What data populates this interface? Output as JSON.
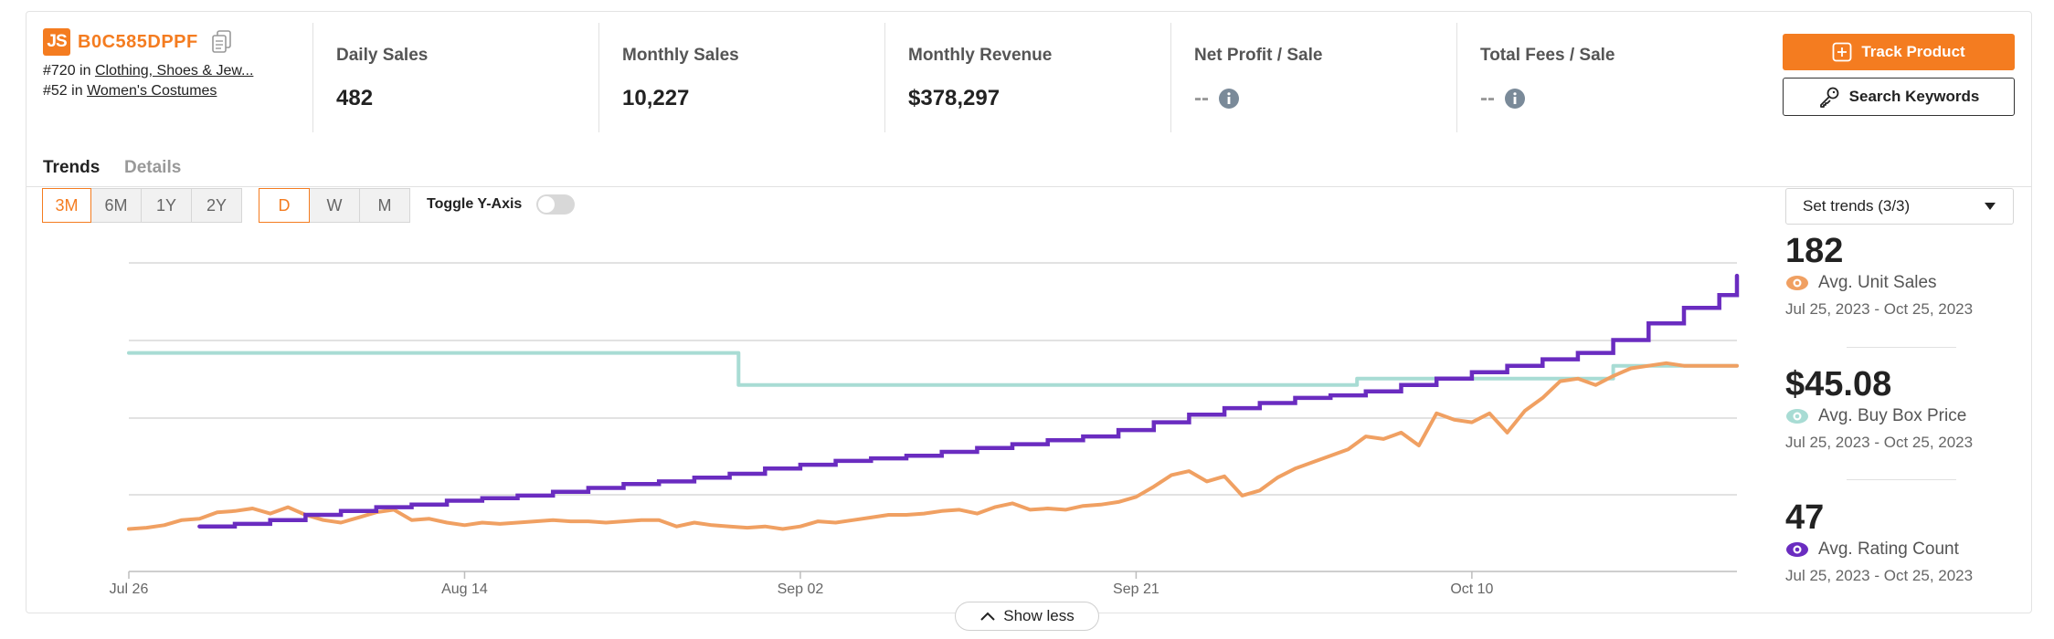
{
  "product": {
    "logo": "JS",
    "asin": "B0C585DPPF",
    "ranks": [
      {
        "rank": "#720",
        "in": "in",
        "category": "Clothing, Shoes & Jew..."
      },
      {
        "rank": "#52",
        "in": "in",
        "category": "Women's Costumes"
      }
    ]
  },
  "metrics": [
    {
      "label": "Daily Sales",
      "value": "482"
    },
    {
      "label": "Monthly Sales",
      "value": "10,227"
    },
    {
      "label": "Monthly Revenue",
      "value": "$378,297"
    },
    {
      "label": "Net Profit / Sale",
      "value": "--"
    },
    {
      "label": "Total Fees / Sale",
      "value": "--"
    }
  ],
  "buttons": {
    "track": "Track Product",
    "keywords": "Search Keywords",
    "show_less": "Show less"
  },
  "tabs": {
    "trends": "Trends",
    "details": "Details"
  },
  "ranges": [
    "3M",
    "6M",
    "1Y",
    "2Y"
  ],
  "intervals": [
    "D",
    "W",
    "M"
  ],
  "toggle_label": "Toggle Y-Axis",
  "set_trends": "Set trends (3/3)",
  "stats": [
    {
      "value": "182",
      "label": "Avg. Unit Sales",
      "range": "Jul 25, 2023 - Oct 25, 2023",
      "color": "#f0a062"
    },
    {
      "value": "$45.08",
      "label": "Avg. Buy Box Price",
      "range": "Jul 25, 2023 - Oct 25, 2023",
      "color": "#a8dcd4"
    },
    {
      "value": "47",
      "label": "Avg. Rating Count",
      "range": "Jul 25, 2023 - Oct 25, 2023",
      "color": "#6a2cc0"
    }
  ],
  "colors": {
    "accent": "#f47c20",
    "unit_sales": "#f0a062",
    "buy_box": "#a8dcd4",
    "rating": "#6a2cc0"
  },
  "chart_data": {
    "type": "line",
    "x_tick_labels": [
      "Jul 26",
      "Aug 14",
      "Sep 02",
      "Sep 21",
      "Oct 10"
    ],
    "x_range_days": [
      0,
      91
    ],
    "x_tick_days": [
      0,
      19,
      38,
      57,
      76
    ],
    "grid": true,
    "y_axis_labels_shown": false,
    "series": [
      {
        "name": "Avg. Unit Sales",
        "color": "#f0a062",
        "x": [
          0,
          1,
          2,
          3,
          4,
          5,
          6,
          7,
          8,
          9,
          10,
          11,
          12,
          13,
          14,
          15,
          16,
          17,
          18,
          19,
          20,
          21,
          22,
          23,
          24,
          25,
          26,
          27,
          28,
          29,
          30,
          31,
          32,
          33,
          34,
          35,
          36,
          37,
          38,
          39,
          40,
          41,
          42,
          43,
          44,
          45,
          46,
          47,
          48,
          49,
          50,
          51,
          52,
          53,
          54,
          55,
          56,
          57,
          58,
          59,
          60,
          61,
          62,
          63,
          64,
          65,
          66,
          67,
          68,
          69,
          70,
          71,
          72,
          73,
          74,
          75,
          76,
          77,
          78,
          79,
          80,
          81,
          82,
          83,
          84,
          85,
          86,
          87,
          88,
          89,
          90,
          91
        ],
        "y": [
          33,
          34,
          36,
          40,
          41,
          46,
          47,
          49,
          45,
          50,
          44,
          40,
          38,
          42,
          46,
          48,
          40,
          41,
          38,
          36,
          38,
          37,
          38,
          39,
          40,
          39,
          39,
          38,
          39,
          40,
          40,
          35,
          38,
          36,
          35,
          34,
          35,
          33,
          35,
          39,
          38,
          40,
          42,
          44,
          44,
          45,
          47,
          48,
          45,
          50,
          53,
          48,
          49,
          48,
          51,
          52,
          54,
          58,
          66,
          75,
          78,
          70,
          74,
          59,
          63,
          73,
          80,
          85,
          90,
          95,
          105,
          103,
          108,
          98,
          123,
          118,
          116,
          123,
          108,
          125,
          135,
          148,
          150,
          145,
          152,
          158,
          160,
          162,
          160,
          160,
          160,
          160
        ]
      },
      {
        "name": "Avg. Buy Box Price",
        "color": "#a8dcd4",
        "x": [
          0,
          34.5,
          34.5,
          69.5,
          69.5,
          84,
          84,
          91
        ],
        "y": [
          170,
          170,
          145,
          145,
          150,
          150,
          160,
          160
        ]
      },
      {
        "name": "Avg. Rating Count",
        "color": "#6a2cc0",
        "x": [
          4,
          6,
          8,
          10,
          12,
          14,
          16,
          18,
          20,
          22,
          24,
          26,
          28,
          30,
          32,
          34,
          36,
          38,
          40,
          42,
          44,
          46,
          48,
          50,
          52,
          54,
          56,
          58,
          60,
          62,
          64,
          66,
          68,
          70,
          72,
          74,
          76,
          78,
          80,
          82,
          84,
          86,
          88,
          90,
          91
        ],
        "y": [
          35,
          37,
          40,
          44,
          47,
          50,
          52,
          55,
          57,
          59,
          62,
          65,
          68,
          70,
          73,
          76,
          80,
          83,
          86,
          88,
          90,
          93,
          96,
          99,
          102,
          105,
          110,
          116,
          122,
          127,
          131,
          135,
          137,
          140,
          145,
          150,
          155,
          160,
          165,
          170,
          180,
          193,
          205,
          215,
          230
        ]
      }
    ]
  }
}
